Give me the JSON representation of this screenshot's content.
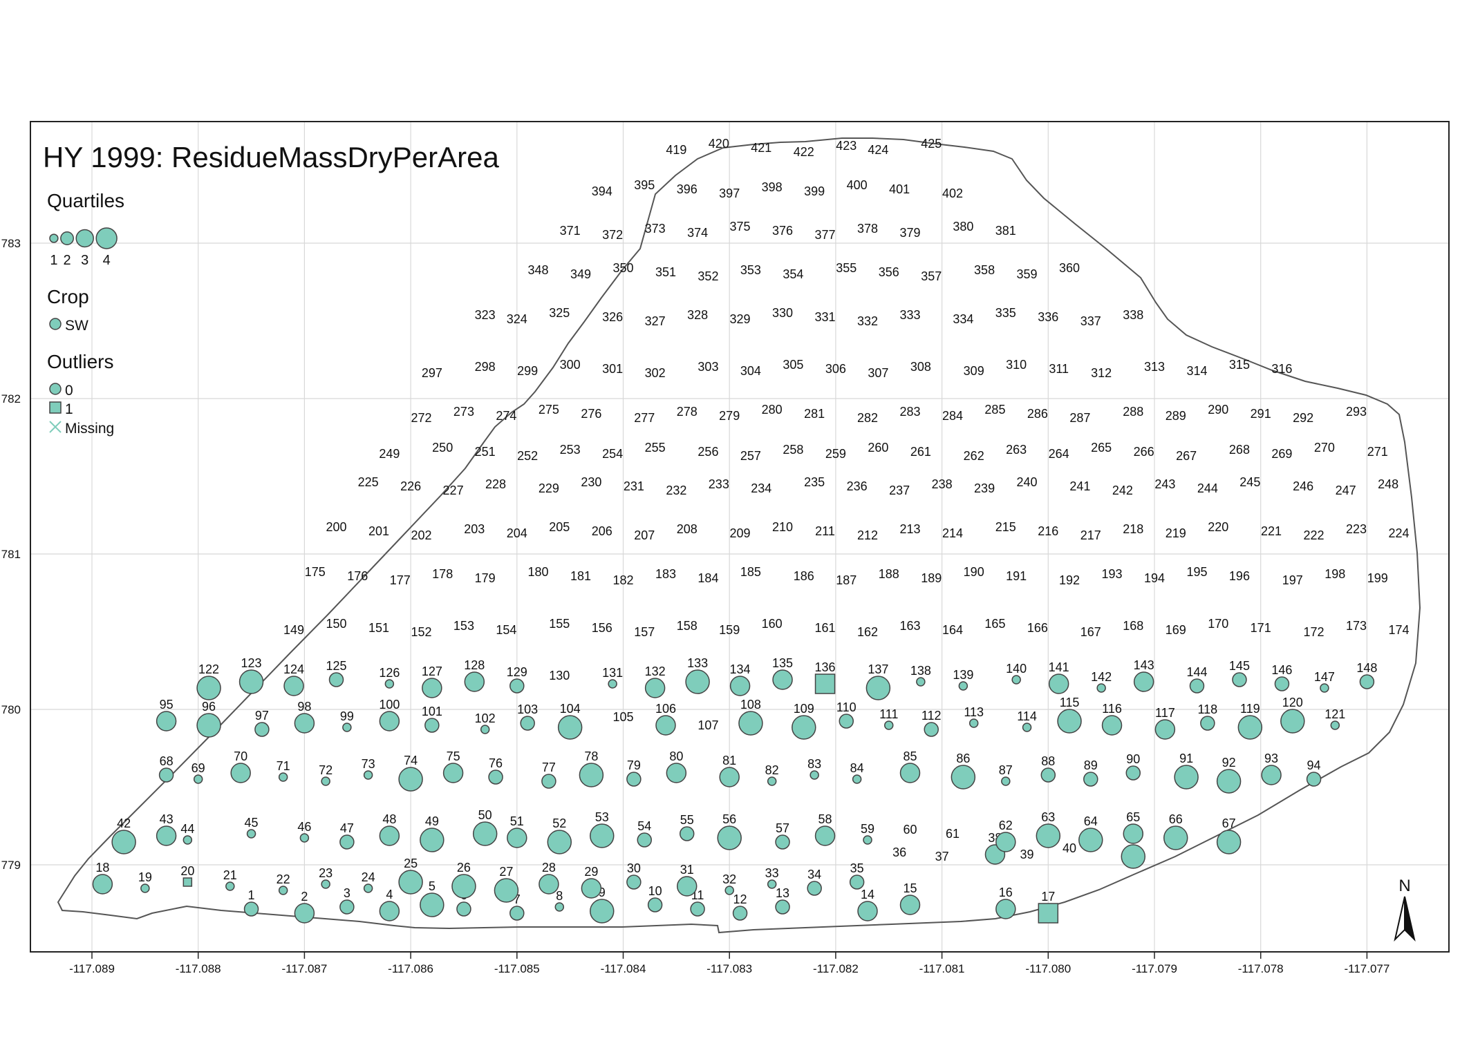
{
  "title": "HY 1999: ResidueMassDryPerArea",
  "colors": {
    "fill": "#7fcdbb",
    "stroke": "#444444",
    "grid": "#d8d8d8",
    "frame": "#222222",
    "boundary": "#555555"
  },
  "legend": {
    "quartiles_title": "Quartiles",
    "quartile_labels": [
      "1",
      "2",
      "3",
      "4"
    ],
    "crop_title": "Crop",
    "crop_label": "SW",
    "outliers_title": "Outliers",
    "outlier_labels": [
      "0",
      "1",
      "Missing"
    ]
  },
  "north_label": "N",
  "axes": {
    "x_ticks": [
      "-117.089",
      "-117.088",
      "-117.087",
      "-117.086",
      "-117.085",
      "-117.084",
      "-117.083",
      "-117.082",
      "-117.081",
      "-117.080",
      "-117.079",
      "-117.078",
      "-117.077"
    ],
    "y_ticks": [
      "783",
      "782",
      "781",
      "780",
      "779"
    ]
  },
  "points": [
    [
      1,
      "-117.0875",
      1,
      0
    ],
    [
      2,
      "-117.0870",
      2,
      0
    ],
    [
      3,
      "-117.0866",
      1,
      0
    ],
    [
      4,
      "-117.0862",
      2,
      0
    ],
    [
      5,
      "-117.0858",
      3,
      0
    ],
    [
      6,
      "-117.0855",
      1,
      0
    ],
    [
      7,
      "-117.0850",
      1,
      0
    ],
    [
      8,
      "-117.0846",
      0,
      0
    ],
    [
      9,
      "-117.0842",
      3,
      0
    ],
    [
      10,
      "-117.0837",
      1,
      0
    ],
    [
      11,
      "-117.0833",
      1,
      0
    ],
    [
      12,
      "-117.0829",
      1,
      0
    ],
    [
      13,
      "-117.0825",
      1,
      0
    ],
    [
      14,
      "-117.0817",
      2,
      0
    ],
    [
      15,
      "-117.0813",
      2,
      0
    ],
    [
      16,
      "-117.0804",
      2,
      0
    ],
    [
      17,
      "-117.0800",
      2,
      1
    ],
    [
      18,
      "-117.0889",
      2,
      0
    ],
    [
      19,
      "-117.0885",
      0,
      0
    ],
    [
      20,
      "-117.0881",
      0,
      1
    ],
    [
      21,
      "-117.0877",
      0,
      0
    ],
    [
      22,
      "-117.0872",
      0,
      0
    ],
    [
      23,
      "-117.0868",
      0,
      0
    ],
    [
      24,
      "-117.0864",
      0,
      0
    ],
    [
      25,
      "-117.0860",
      3,
      0
    ],
    [
      26,
      "-117.0855",
      3,
      0
    ],
    [
      27,
      "-117.0851",
      3,
      0
    ],
    [
      28,
      "-117.0847",
      2,
      0
    ],
    [
      29,
      "-117.0843",
      2,
      0
    ],
    [
      30,
      "-117.0839",
      1,
      0
    ],
    [
      31,
      "-117.0834",
      2,
      0
    ],
    [
      32,
      "-117.0830",
      0,
      0
    ],
    [
      33,
      "-117.0826",
      0,
      0
    ],
    [
      34,
      "-117.0822",
      1,
      0
    ],
    [
      35,
      "-117.0818",
      1,
      0
    ],
    [
      38,
      "-117.0805",
      2,
      0
    ],
    [
      41,
      "-117.0792",
      3,
      0
    ],
    [
      42,
      "-117.0887",
      3,
      0
    ],
    [
      43,
      "-117.0883",
      2,
      0
    ],
    [
      44,
      "-117.0881",
      0,
      0
    ],
    [
      45,
      "-117.0875",
      0,
      0
    ],
    [
      46,
      "-117.0870",
      0,
      0
    ],
    [
      47,
      "-117.0866",
      1,
      0
    ],
    [
      48,
      "-117.0862",
      2,
      0
    ],
    [
      49,
      "-117.0858",
      3,
      0
    ],
    [
      50,
      "-117.0853",
      3,
      0
    ],
    [
      51,
      "-117.0850",
      2,
      0
    ],
    [
      52,
      "-117.0846",
      3,
      0
    ],
    [
      53,
      "-117.0842",
      3,
      0
    ],
    [
      54,
      "-117.0838",
      1,
      0
    ],
    [
      55,
      "-117.0834",
      1,
      0
    ],
    [
      56,
      "-117.0830",
      3,
      0
    ],
    [
      57,
      "-117.0825",
      1,
      0
    ],
    [
      58,
      "-117.0821",
      2,
      0
    ],
    [
      59,
      "-117.0817",
      0,
      0
    ],
    [
      62,
      "-117.0804",
      2,
      0
    ],
    [
      63,
      "-117.0800",
      3,
      0
    ],
    [
      64,
      "-117.0796",
      3,
      0
    ],
    [
      65,
      "-117.0792",
      2,
      0
    ],
    [
      66,
      "-117.0788",
      3,
      0
    ],
    [
      67,
      "-117.0783",
      3,
      0
    ],
    [
      68,
      "-117.0883",
      1,
      0
    ],
    [
      69,
      "-117.0880",
      0,
      0
    ],
    [
      70,
      "-117.0876",
      2,
      0
    ],
    [
      71,
      "-117.0872",
      0,
      0
    ],
    [
      72,
      "-117.0868",
      0,
      0
    ],
    [
      73,
      "-117.0864",
      0,
      0
    ],
    [
      74,
      "-117.0860",
      3,
      0
    ],
    [
      75,
      "-117.0856",
      2,
      0
    ],
    [
      76,
      "-117.0852",
      1,
      0
    ],
    [
      77,
      "-117.0847",
      1,
      0
    ],
    [
      78,
      "-117.0843",
      3,
      0
    ],
    [
      79,
      "-117.0839",
      1,
      0
    ],
    [
      80,
      "-117.0835",
      2,
      0
    ],
    [
      81,
      "-117.0830",
      2,
      0
    ],
    [
      82,
      "-117.0826",
      0,
      0
    ],
    [
      83,
      "-117.0822",
      0,
      0
    ],
    [
      84,
      "-117.0818",
      0,
      0
    ],
    [
      85,
      "-117.0813",
      2,
      0
    ],
    [
      86,
      "-117.0808",
      3,
      0
    ],
    [
      87,
      "-117.0804",
      0,
      0
    ],
    [
      88,
      "-117.0800",
      1,
      0
    ],
    [
      89,
      "-117.0796",
      1,
      0
    ],
    [
      90,
      "-117.0792",
      1,
      0
    ],
    [
      91,
      "-117.0787",
      3,
      0
    ],
    [
      92,
      "-117.0783",
      3,
      0
    ],
    [
      93,
      "-117.0779",
      2,
      0
    ],
    [
      94,
      "-117.0775",
      1,
      0
    ],
    [
      95,
      "-117.0883",
      2,
      0
    ],
    [
      96,
      "-117.0879",
      3,
      0
    ],
    [
      97,
      "-117.0874",
      1,
      0
    ],
    [
      98,
      "-117.0870",
      2,
      0
    ],
    [
      99,
      "-117.0866",
      0,
      0
    ],
    [
      100,
      "-117.0862",
      2,
      0
    ],
    [
      101,
      "-117.0858",
      1,
      0
    ],
    [
      102,
      "-117.0853",
      0,
      0
    ],
    [
      103,
      "-117.0849",
      1,
      0
    ],
    [
      104,
      "-117.0845",
      3,
      0
    ],
    [
      106,
      "-117.0836",
      2,
      0
    ],
    [
      108,
      "-117.0828",
      3,
      0
    ],
    [
      109,
      "-117.0823",
      3,
      0
    ],
    [
      110,
      "-117.0819",
      1,
      0
    ],
    [
      111,
      "-117.0815",
      0,
      0
    ],
    [
      112,
      "-117.0811",
      1,
      0
    ],
    [
      113,
      "-117.0807",
      0,
      0
    ],
    [
      114,
      "-117.0802",
      0,
      0
    ],
    [
      115,
      "-117.0798",
      3,
      0
    ],
    [
      116,
      "-117.0794",
      2,
      0
    ],
    [
      117,
      "-117.0789",
      2,
      0
    ],
    [
      118,
      "-117.0785",
      1,
      0
    ],
    [
      119,
      "-117.0781",
      3,
      0
    ],
    [
      120,
      "-117.0777",
      3,
      0
    ],
    [
      121,
      "-117.0773",
      0,
      0
    ],
    [
      122,
      "-117.0879",
      3,
      0
    ],
    [
      123,
      "-117.0875",
      3,
      0
    ],
    [
      124,
      "-117.0871",
      2,
      0
    ],
    [
      125,
      "-117.0867",
      1,
      0
    ],
    [
      126,
      "-117.0862",
      0,
      0
    ],
    [
      127,
      "-117.0858",
      2,
      0
    ],
    [
      128,
      "-117.0854",
      2,
      0
    ],
    [
      129,
      "-117.0850",
      1,
      0
    ],
    [
      131,
      "-117.0841",
      0,
      0
    ],
    [
      132,
      "-117.0837",
      2,
      0
    ],
    [
      133,
      "-117.0833",
      3,
      0
    ],
    [
      134,
      "-117.0829",
      2,
      0
    ],
    [
      135,
      "-117.0825",
      2,
      0
    ],
    [
      136,
      "-117.0821",
      2,
      1
    ],
    [
      137,
      "-117.0816",
      3,
      0
    ],
    [
      138,
      "-117.0812",
      0,
      0
    ],
    [
      139,
      "-117.0808",
      0,
      0
    ],
    [
      140,
      "-117.0803",
      0,
      0
    ],
    [
      141,
      "-117.0799",
      2,
      0
    ],
    [
      142,
      "-117.0795",
      0,
      0
    ],
    [
      143,
      "-117.0791",
      2,
      0
    ],
    [
      144,
      "-117.0786",
      1,
      0
    ],
    [
      145,
      "-117.0782",
      1,
      0
    ],
    [
      146,
      "-117.0778",
      1,
      0
    ],
    [
      147,
      "-117.0774",
      0,
      0
    ],
    [
      148,
      "-117.0770",
      1,
      0
    ]
  ],
  "text_labels": [
    [
      36,
      "-117.0814"
    ],
    [
      37,
      "-117.0810"
    ],
    [
      39,
      "-117.0802"
    ],
    [
      40,
      "-117.0798"
    ],
    [
      60,
      "-117.0813"
    ],
    [
      61,
      "-117.0809"
    ],
    [
      105,
      "-117.0840"
    ],
    [
      107,
      "-117.0832"
    ],
    [
      130,
      "-117.0846"
    ],
    [
      149,
      "-117.0871"
    ],
    [
      150,
      "-117.0867"
    ],
    [
      151,
      "-117.0863"
    ],
    [
      152,
      "-117.0859"
    ],
    [
      153,
      "-117.0855"
    ],
    [
      154,
      "-117.0851"
    ],
    [
      155,
      "-117.0846"
    ],
    [
      156,
      "-117.0842"
    ],
    [
      157,
      "-117.0838"
    ],
    [
      158,
      "-117.0834"
    ],
    [
      159,
      "-117.0830"
    ],
    [
      160,
      "-117.0826"
    ],
    [
      161,
      "-117.0821"
    ],
    [
      162,
      "-117.0817"
    ],
    [
      163,
      "-117.0813"
    ],
    [
      164,
      "-117.0809"
    ],
    [
      165,
      "-117.0805"
    ],
    [
      166,
      "-117.0801"
    ],
    [
      167,
      "-117.0796"
    ],
    [
      168,
      "-117.0792"
    ],
    [
      169,
      "-117.0788"
    ],
    [
      170,
      "-117.0784"
    ],
    [
      171,
      "-117.0780"
    ],
    [
      172,
      "-117.0775"
    ],
    [
      173,
      "-117.0771"
    ],
    [
      174,
      "-117.0767"
    ],
    [
      175,
      "-117.0869"
    ],
    [
      176,
      "-117.0865"
    ],
    [
      177,
      "-117.0861"
    ],
    [
      178,
      "-117.0857"
    ],
    [
      179,
      "-117.0853"
    ],
    [
      180,
      "-117.0848"
    ],
    [
      181,
      "-117.0844"
    ],
    [
      182,
      "-117.0840"
    ],
    [
      183,
      "-117.0836"
    ],
    [
      184,
      "-117.0832"
    ],
    [
      185,
      "-117.0828"
    ],
    [
      186,
      "-117.0823"
    ],
    [
      187,
      "-117.0819"
    ],
    [
      188,
      "-117.0815"
    ],
    [
      189,
      "-117.0811"
    ],
    [
      190,
      "-117.0807"
    ],
    [
      191,
      "-117.0803"
    ],
    [
      192,
      "-117.0798"
    ],
    [
      193,
      "-117.0794"
    ],
    [
      194,
      "-117.0790"
    ],
    [
      195,
      "-117.0786"
    ],
    [
      196,
      "-117.0782"
    ],
    [
      197,
      "-117.0777"
    ],
    [
      198,
      "-117.0773"
    ],
    [
      199,
      "-117.0769"
    ],
    [
      200,
      "-117.0867"
    ],
    [
      201,
      "-117.0863"
    ],
    [
      202,
      "-117.0859"
    ],
    [
      203,
      "-117.0854"
    ],
    [
      204,
      "-117.0850"
    ],
    [
      205,
      "-117.0846"
    ],
    [
      206,
      "-117.0842"
    ],
    [
      207,
      "-117.0838"
    ],
    [
      208,
      "-117.0834"
    ],
    [
      209,
      "-117.0829"
    ],
    [
      210,
      "-117.0825"
    ],
    [
      211,
      "-117.0821"
    ],
    [
      212,
      "-117.0817"
    ],
    [
      213,
      "-117.0813"
    ],
    [
      214,
      "-117.0809"
    ],
    [
      215,
      "-117.0804"
    ],
    [
      216,
      "-117.0800"
    ],
    [
      217,
      "-117.0796"
    ],
    [
      218,
      "-117.0792"
    ],
    [
      219,
      "-117.0788"
    ],
    [
      220,
      "-117.0784"
    ],
    [
      221,
      "-117.0779"
    ],
    [
      222,
      "-117.0775"
    ],
    [
      223,
      "-117.0771"
    ],
    [
      224,
      "-117.0767"
    ],
    [
      225,
      "-117.0864"
    ],
    [
      226,
      "-117.0860"
    ],
    [
      227,
      "-117.0856"
    ],
    [
      228,
      "-117.0852"
    ],
    [
      229,
      "-117.0847"
    ],
    [
      230,
      "-117.0843"
    ],
    [
      231,
      "-117.0839"
    ],
    [
      232,
      "-117.0835"
    ],
    [
      233,
      "-117.0831"
    ],
    [
      234,
      "-117.0827"
    ],
    [
      235,
      "-117.0822"
    ],
    [
      236,
      "-117.0818"
    ],
    [
      237,
      "-117.0814"
    ],
    [
      238,
      "-117.0810"
    ],
    [
      239,
      "-117.0806"
    ],
    [
      240,
      "-117.0802"
    ],
    [
      241,
      "-117.0797"
    ],
    [
      242,
      "-117.0793"
    ],
    [
      243,
      "-117.0789"
    ],
    [
      244,
      "-117.0785"
    ],
    [
      245,
      "-117.0781"
    ],
    [
      246,
      "-117.0776"
    ],
    [
      247,
      "-117.0772"
    ],
    [
      248,
      "-117.0768"
    ],
    [
      249,
      "-117.0862"
    ],
    [
      250,
      "-117.0857"
    ],
    [
      251,
      "-117.0853"
    ],
    [
      252,
      "-117.0849"
    ],
    [
      253,
      "-117.0845"
    ],
    [
      254,
      "-117.0841"
    ],
    [
      255,
      "-117.0837"
    ],
    [
      256,
      "-117.0832"
    ],
    [
      257,
      "-117.0828"
    ],
    [
      258,
      "-117.0824"
    ],
    [
      259,
      "-117.0820"
    ],
    [
      260,
      "-117.0816"
    ],
    [
      261,
      "-117.0812"
    ],
    [
      262,
      "-117.0807"
    ],
    [
      263,
      "-117.0803"
    ],
    [
      264,
      "-117.0799"
    ],
    [
      265,
      "-117.0795"
    ],
    [
      266,
      "-117.0791"
    ],
    [
      267,
      "-117.0787"
    ],
    [
      268,
      "-117.0782"
    ],
    [
      269,
      "-117.0778"
    ],
    [
      270,
      "-117.0774"
    ],
    [
      271,
      "-117.0769"
    ],
    [
      272,
      "-117.0859"
    ],
    [
      273,
      "-117.0855"
    ],
    [
      274,
      "-117.0851"
    ],
    [
      275,
      "-117.0847"
    ],
    [
      276,
      "-117.0843"
    ],
    [
      277,
      "-117.0838"
    ],
    [
      278,
      "-117.0834"
    ],
    [
      279,
      "-117.0830"
    ],
    [
      280,
      "-117.0826"
    ],
    [
      281,
      "-117.0822"
    ],
    [
      282,
      "-117.0817"
    ],
    [
      283,
      "-117.0813"
    ],
    [
      284,
      "-117.0809"
    ],
    [
      285,
      "-117.0805"
    ],
    [
      286,
      "-117.0801"
    ],
    [
      287,
      "-117.0797"
    ],
    [
      288,
      "-117.0792"
    ],
    [
      289,
      "-117.0788"
    ],
    [
      290,
      "-117.0784"
    ],
    [
      291,
      "-117.0780"
    ],
    [
      292,
      "-117.0776"
    ],
    [
      293,
      "-117.0771"
    ],
    [
      297,
      "-117.0858"
    ],
    [
      298,
      "-117.0853"
    ],
    [
      299,
      "-117.0849"
    ],
    [
      300,
      "-117.0845"
    ],
    [
      301,
      "-117.0841"
    ],
    [
      302,
      "-117.0837"
    ],
    [
      303,
      "-117.0832"
    ],
    [
      304,
      "-117.0828"
    ],
    [
      305,
      "-117.0824"
    ],
    [
      306,
      "-117.0820"
    ],
    [
      307,
      "-117.0816"
    ],
    [
      308,
      "-117.0812"
    ],
    [
      309,
      "-117.0807"
    ],
    [
      310,
      "-117.0803"
    ],
    [
      311,
      "-117.0799"
    ],
    [
      312,
      "-117.0795"
    ],
    [
      313,
      "-117.0790"
    ],
    [
      314,
      "-117.0786"
    ],
    [
      315,
      "-117.0782"
    ],
    [
      316,
      "-117.0778"
    ],
    [
      323,
      "-117.0853"
    ],
    [
      324,
      "-117.0850"
    ],
    [
      325,
      "-117.0846"
    ],
    [
      326,
      "-117.0841"
    ],
    [
      327,
      "-117.0837"
    ],
    [
      328,
      "-117.0833"
    ],
    [
      329,
      "-117.0829"
    ],
    [
      330,
      "-117.0825"
    ],
    [
      331,
      "-117.0821"
    ],
    [
      332,
      "-117.0817"
    ],
    [
      333,
      "-117.0813"
    ],
    [
      334,
      "-117.0808"
    ],
    [
      335,
      "-117.0804"
    ],
    [
      336,
      "-117.0800"
    ],
    [
      337,
      "-117.0796"
    ],
    [
      338,
      "-117.0792"
    ],
    [
      348,
      "-117.0848"
    ],
    [
      349,
      "-117.0844"
    ],
    [
      350,
      "-117.0840"
    ],
    [
      351,
      "-117.0836"
    ],
    [
      352,
      "-117.0832"
    ],
    [
      353,
      "-117.0828"
    ],
    [
      354,
      "-117.0824"
    ],
    [
      355,
      "-117.0819"
    ],
    [
      356,
      "-117.0815"
    ],
    [
      357,
      "-117.0811"
    ],
    [
      358,
      "-117.0806"
    ],
    [
      359,
      "-117.0802"
    ],
    [
      360,
      "-117.0798"
    ],
    [
      371,
      "-117.0845"
    ],
    [
      372,
      "-117.0841"
    ],
    [
      373,
      "-117.0837"
    ],
    [
      374,
      "-117.0833"
    ],
    [
      375,
      "-117.0829"
    ],
    [
      376,
      "-117.0825"
    ],
    [
      377,
      "-117.0821"
    ],
    [
      378,
      "-117.0817"
    ],
    [
      379,
      "-117.0813"
    ],
    [
      380,
      "-117.0808"
    ],
    [
      381,
      "-117.0804"
    ],
    [
      394,
      "-117.0842"
    ],
    [
      395,
      "-117.0838"
    ],
    [
      396,
      "-117.0834"
    ],
    [
      397,
      "-117.0830"
    ],
    [
      398,
      "-117.0826"
    ],
    [
      399,
      "-117.0822"
    ],
    [
      400,
      "-117.0818"
    ],
    [
      401,
      "-117.0814"
    ],
    [
      402,
      "-117.0809"
    ],
    [
      419,
      "-117.0835"
    ],
    [
      420,
      "-117.0831"
    ],
    [
      421,
      "-117.0827"
    ],
    [
      422,
      "-117.0823"
    ],
    [
      423,
      "-117.0819"
    ],
    [
      424,
      "-117.0816"
    ],
    [
      425,
      "-117.0811"
    ]
  ]
}
